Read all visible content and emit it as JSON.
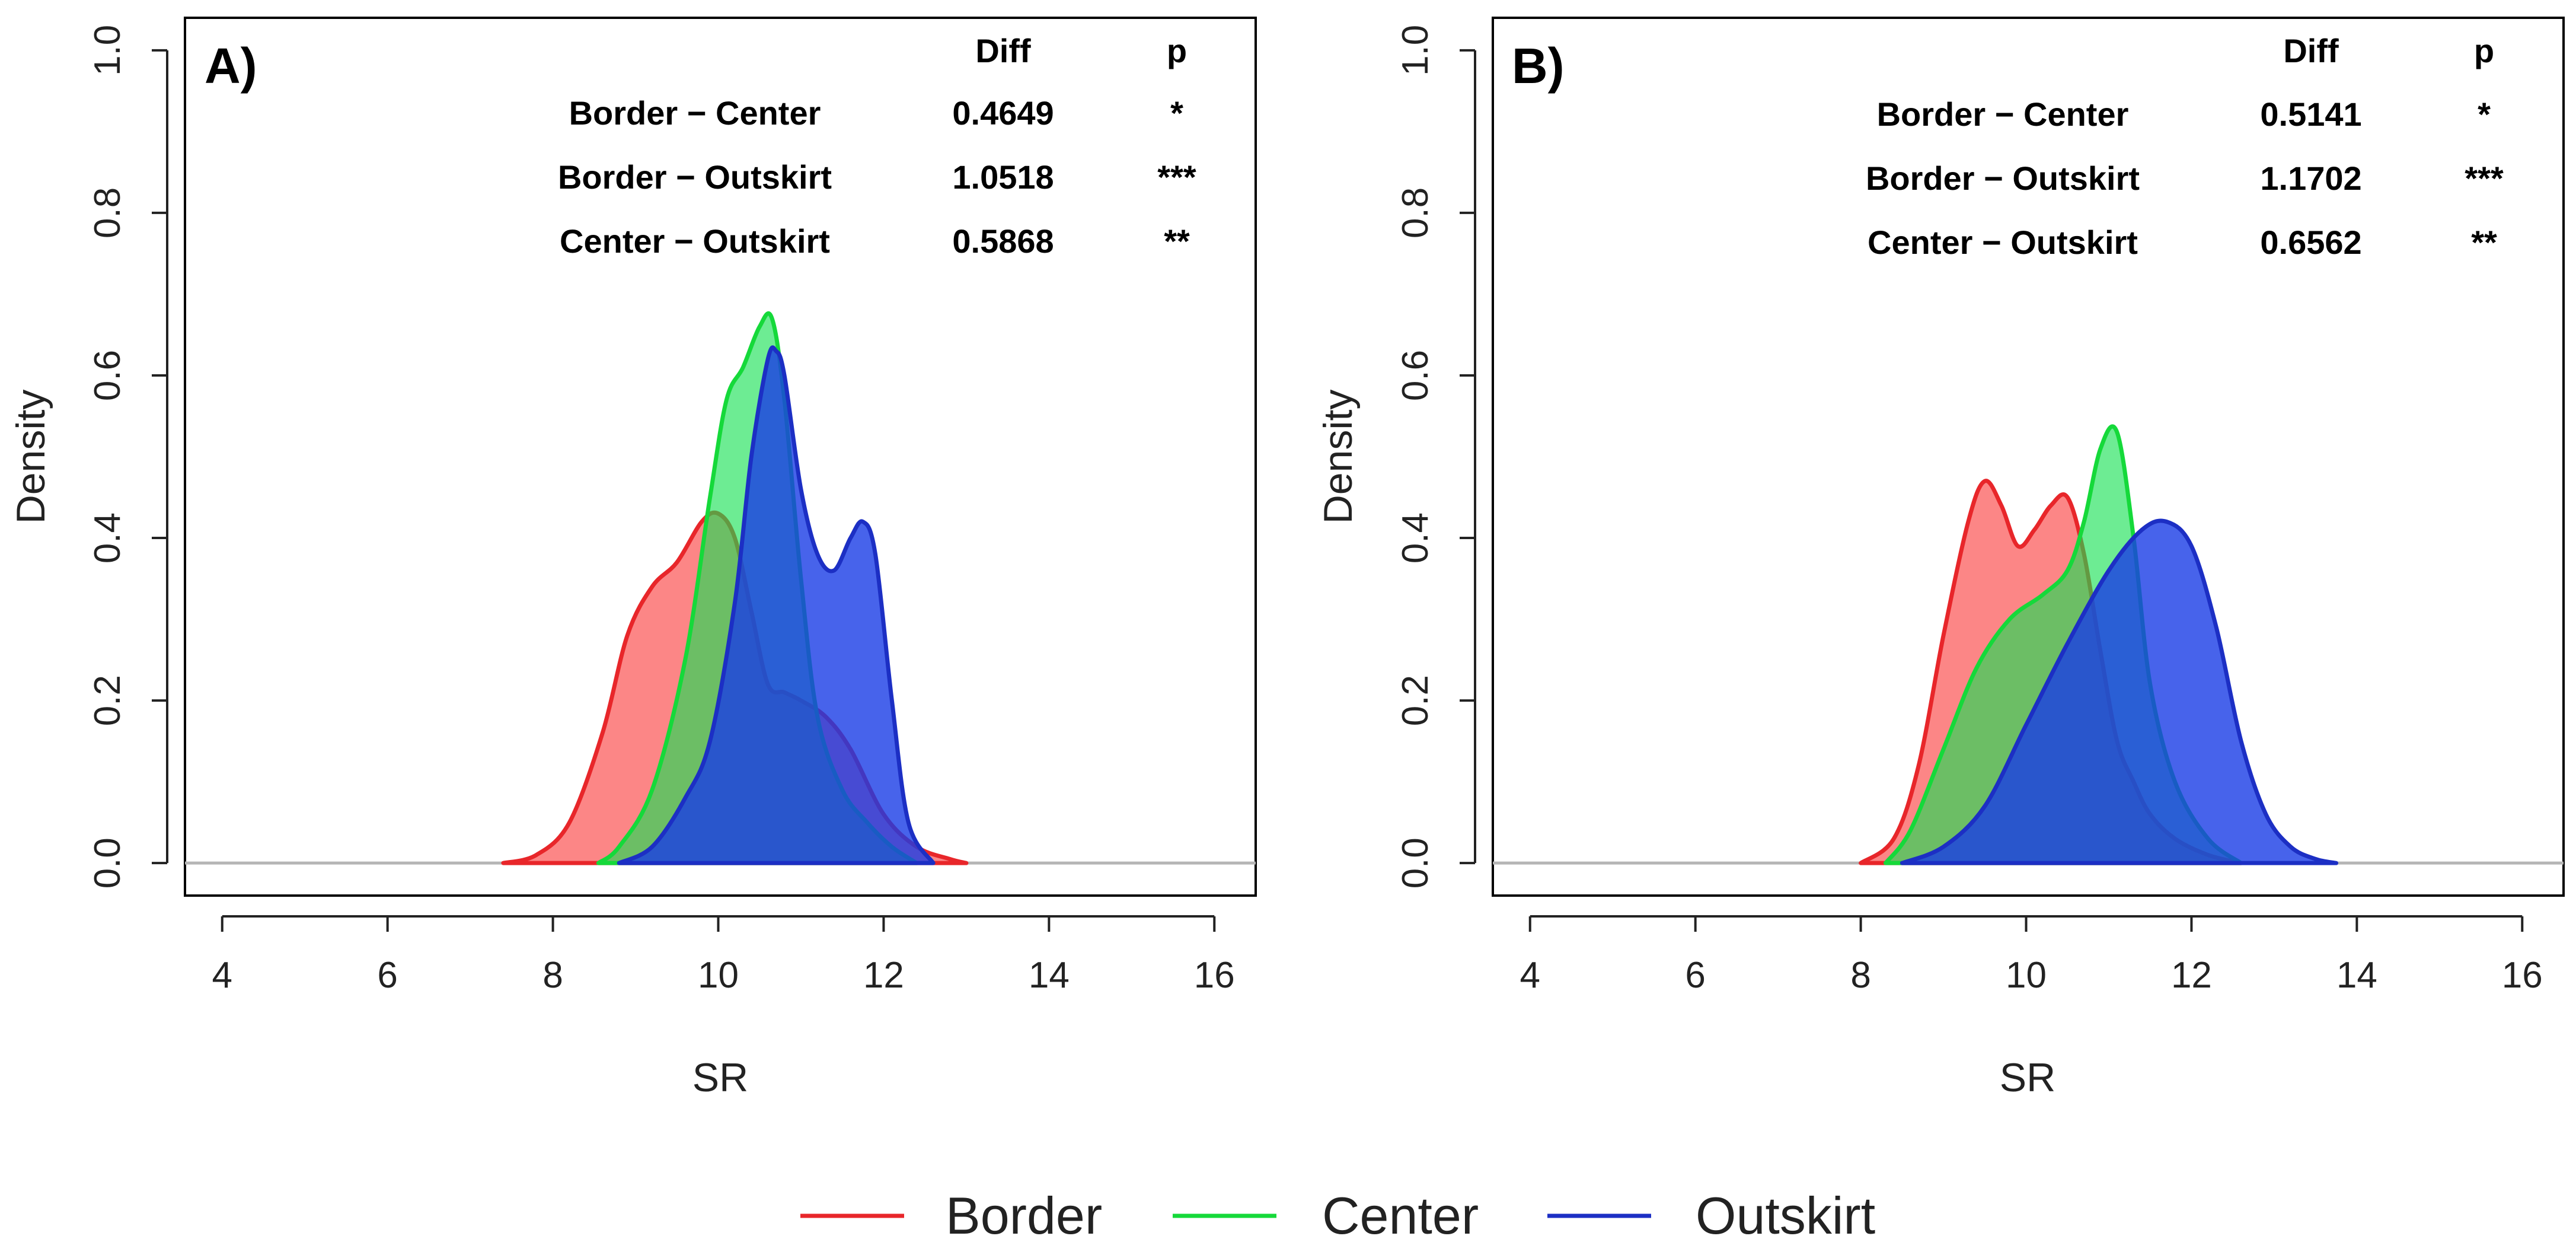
{
  "chart_data": [
    {
      "type": "area",
      "panel_label": "A)",
      "xlabel": "SR",
      "ylabel": "Density",
      "xlim": [
        3.55,
        16.5
      ],
      "ylim": [
        -0.04,
        1.04
      ],
      "xticks": [
        "4",
        "6",
        "8",
        "10",
        "12",
        "14",
        "16"
      ],
      "yticks": [
        "0.0",
        "0.2",
        "0.4",
        "0.6",
        "0.8",
        "1.0"
      ],
      "stats_table": {
        "headers": [
          "",
          "Diff",
          "p"
        ],
        "rows": [
          [
            "Border − Center",
            "0.4649",
            "*"
          ],
          [
            "Border − Outskirt",
            "1.0518",
            "***"
          ],
          [
            "Center − Outskirt",
            "0.5868",
            "**"
          ]
        ]
      },
      "series": [
        {
          "name": "Border",
          "x": [
            7.4,
            7.8,
            8.2,
            8.6,
            8.9,
            9.2,
            9.5,
            9.8,
            10.0,
            10.2,
            10.4,
            10.6,
            10.8,
            11.0,
            11.3,
            11.6,
            12.0,
            12.4,
            12.8,
            13.0
          ],
          "values": [
            0.0,
            0.01,
            0.05,
            0.16,
            0.28,
            0.34,
            0.37,
            0.42,
            0.43,
            0.4,
            0.31,
            0.22,
            0.21,
            0.2,
            0.18,
            0.14,
            0.06,
            0.02,
            0.005,
            0.0
          ]
        },
        {
          "name": "Center",
          "x": [
            8.55,
            8.8,
            9.2,
            9.6,
            9.9,
            10.1,
            10.3,
            10.5,
            10.65,
            10.8,
            11.0,
            11.2,
            11.5,
            11.8,
            12.1,
            12.4
          ],
          "values": [
            0.0,
            0.02,
            0.09,
            0.25,
            0.45,
            0.57,
            0.61,
            0.66,
            0.67,
            0.57,
            0.35,
            0.18,
            0.09,
            0.05,
            0.02,
            0.0
          ]
        },
        {
          "name": "Outskirt",
          "x": [
            8.8,
            9.2,
            9.6,
            9.9,
            10.2,
            10.4,
            10.6,
            10.7,
            10.8,
            11.0,
            11.2,
            11.4,
            11.6,
            11.75,
            11.9,
            12.1,
            12.3,
            12.6
          ],
          "values": [
            0.0,
            0.02,
            0.08,
            0.15,
            0.32,
            0.5,
            0.62,
            0.63,
            0.6,
            0.46,
            0.38,
            0.36,
            0.4,
            0.42,
            0.38,
            0.2,
            0.05,
            0.0
          ]
        }
      ]
    },
    {
      "type": "area",
      "panel_label": "B)",
      "xlabel": "SR",
      "ylabel": "Density",
      "xlim": [
        3.55,
        16.5
      ],
      "ylim": [
        -0.04,
        1.04
      ],
      "xticks": [
        "4",
        "6",
        "8",
        "10",
        "12",
        "14",
        "16"
      ],
      "yticks": [
        "0.0",
        "0.2",
        "0.4",
        "0.6",
        "0.8",
        "1.0"
      ],
      "stats_table": {
        "headers": [
          "",
          "Diff",
          "p"
        ],
        "rows": [
          [
            "Border − Center",
            "0.5141",
            "*"
          ],
          [
            "Border − Outskirt",
            "1.1702",
            "***"
          ],
          [
            "Center − Outskirt",
            "0.6562",
            "**"
          ]
        ]
      },
      "series": [
        {
          "name": "Border",
          "x": [
            8.0,
            8.4,
            8.7,
            9.0,
            9.3,
            9.5,
            9.7,
            9.9,
            10.1,
            10.3,
            10.5,
            10.7,
            10.9,
            11.1,
            11.3,
            11.5,
            11.8,
            12.2,
            12.6
          ],
          "values": [
            0.0,
            0.03,
            0.12,
            0.28,
            0.42,
            0.47,
            0.44,
            0.39,
            0.41,
            0.44,
            0.45,
            0.38,
            0.26,
            0.15,
            0.1,
            0.06,
            0.03,
            0.01,
            0.0
          ]
        },
        {
          "name": "Center",
          "x": [
            8.3,
            8.6,
            9.0,
            9.4,
            9.8,
            10.2,
            10.5,
            10.7,
            10.9,
            11.1,
            11.3,
            11.5,
            11.8,
            12.2,
            12.6
          ],
          "values": [
            0.0,
            0.04,
            0.14,
            0.24,
            0.3,
            0.33,
            0.36,
            0.42,
            0.51,
            0.53,
            0.4,
            0.22,
            0.1,
            0.03,
            0.0
          ]
        },
        {
          "name": "Outskirt",
          "x": [
            8.5,
            9.0,
            9.5,
            10.0,
            10.5,
            11.0,
            11.4,
            11.7,
            12.0,
            12.3,
            12.6,
            12.9,
            13.2,
            13.5,
            13.75
          ],
          "values": [
            0.0,
            0.02,
            0.07,
            0.17,
            0.27,
            0.36,
            0.41,
            0.42,
            0.39,
            0.29,
            0.15,
            0.06,
            0.02,
            0.005,
            0.0
          ]
        }
      ]
    }
  ],
  "legend": {
    "items": [
      {
        "label": "Border",
        "color": "#e8262a"
      },
      {
        "label": "Center",
        "color": "#15d93a"
      },
      {
        "label": "Outskirt",
        "color": "#1c2fc4"
      }
    ]
  },
  "colors": {
    "Border": {
      "fill": "rgba(250,60,60,0.62)",
      "line": "#e8262a"
    },
    "Center": {
      "fill": "rgba(20,225,80,0.62)",
      "line": "#15d93a"
    },
    "Outskirt": {
      "fill": "rgba(25,60,230,0.80)",
      "line": "#1c2fc4"
    },
    "baseline": "#b5b5b5"
  }
}
